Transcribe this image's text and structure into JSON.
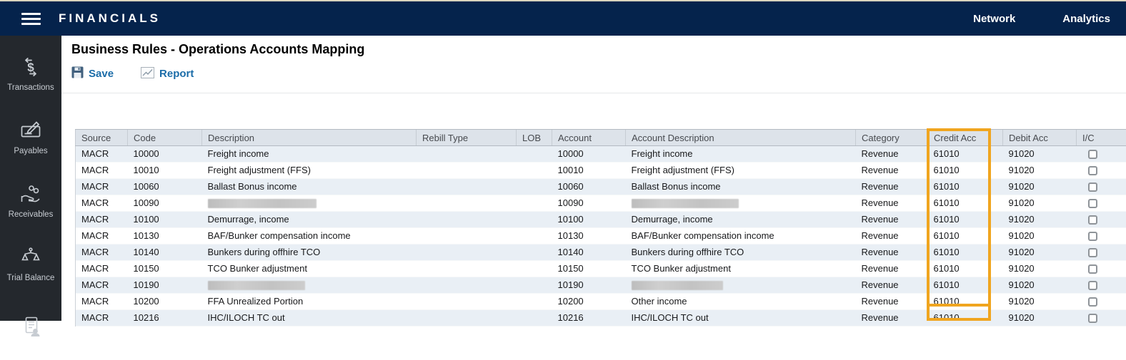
{
  "navbar": {
    "title": "FINANCIALS",
    "links": [
      {
        "label": "Network"
      },
      {
        "label": "Analytics"
      }
    ]
  },
  "sidebar": {
    "items": [
      {
        "label": "Transactions",
        "icon": "money-transfer-icon"
      },
      {
        "label": "Payables",
        "icon": "check-pencil-icon"
      },
      {
        "label": "Receivables",
        "icon": "hand-coins-icon"
      },
      {
        "label": "Trial Balance",
        "icon": "scales-icon"
      },
      {
        "label": "",
        "icon": "document-person-icon"
      }
    ]
  },
  "main": {
    "title": "Business Rules - Operations Accounts Mapping",
    "toolbar": {
      "save_label": "Save",
      "report_label": "Report"
    }
  },
  "table": {
    "columns": [
      "Source",
      "Code",
      "Description",
      "Rebill Type",
      "LOB",
      "Account",
      "Account Description",
      "Category",
      "Credit Acc",
      "Debit Acc",
      "I/C"
    ],
    "rows": [
      {
        "source": "MACR",
        "code": "10000",
        "description": "Freight income",
        "rebill_type": "",
        "lob": "",
        "account": "10000",
        "account_description": "Freight income",
        "category": "Revenue",
        "credit_acc": "61010",
        "debit_acc": "91020",
        "ic_checked": false
      },
      {
        "source": "MACR",
        "code": "10010",
        "description": "Freight adjustment (FFS)",
        "rebill_type": "",
        "lob": "",
        "account": "10010",
        "account_description": "Freight adjustment (FFS)",
        "category": "Revenue",
        "credit_acc": "61010",
        "debit_acc": "91020",
        "ic_checked": false
      },
      {
        "source": "MACR",
        "code": "10060",
        "description": "Ballast Bonus income",
        "rebill_type": "",
        "lob": "",
        "account": "10060",
        "account_description": "Ballast Bonus income",
        "category": "Revenue",
        "credit_acc": "61010",
        "debit_acc": "91020",
        "ic_checked": false
      },
      {
        "source": "MACR",
        "code": "10090",
        "description": "",
        "description_redacted": true,
        "rebill_type": "",
        "lob": "",
        "account": "10090",
        "account_description": "",
        "account_description_redacted": true,
        "category": "Revenue",
        "credit_acc": "61010",
        "debit_acc": "91020",
        "ic_checked": false
      },
      {
        "source": "MACR",
        "code": "10100",
        "description": "Demurrage, income",
        "rebill_type": "",
        "lob": "",
        "account": "10100",
        "account_description": "Demurrage, income",
        "category": "Revenue",
        "credit_acc": "61010",
        "debit_acc": "91020",
        "ic_checked": false
      },
      {
        "source": "MACR",
        "code": "10130",
        "description": "BAF/Bunker compensation income",
        "rebill_type": "",
        "lob": "",
        "account": "10130",
        "account_description": "BAF/Bunker compensation income",
        "category": "Revenue",
        "credit_acc": "61010",
        "debit_acc": "91020",
        "ic_checked": false
      },
      {
        "source": "MACR",
        "code": "10140",
        "description": "Bunkers during offhire TCO",
        "rebill_type": "",
        "lob": "",
        "account": "10140",
        "account_description": "Bunkers during offhire TCO",
        "category": "Revenue",
        "credit_acc": "61010",
        "debit_acc": "91020",
        "ic_checked": false
      },
      {
        "source": "MACR",
        "code": "10150",
        "description": "TCO Bunker adjustment",
        "rebill_type": "",
        "lob": "",
        "account": "10150",
        "account_description": "TCO Bunker adjustment",
        "category": "Revenue",
        "credit_acc": "61010",
        "debit_acc": "91020",
        "ic_checked": false
      },
      {
        "source": "MACR",
        "code": "10190",
        "description": "",
        "description_redacted": true,
        "rebill_type": "",
        "lob": "",
        "account": "10190",
        "account_description": "",
        "account_description_redacted": true,
        "category": "Revenue",
        "credit_acc": "61010",
        "debit_acc": "91020",
        "ic_checked": false
      },
      {
        "source": "MACR",
        "code": "10200",
        "description": "FFA Unrealized Portion",
        "rebill_type": "",
        "lob": "",
        "account": "10200",
        "account_description": "Other income",
        "category": "Revenue",
        "credit_acc": "61010",
        "debit_acc": "91020",
        "ic_checked": false
      },
      {
        "source": "MACR",
        "code": "10216",
        "description": "IHC/ILOCH TC out",
        "rebill_type": "",
        "lob": "",
        "account": "10216",
        "account_description": "IHC/ILOCH TC out",
        "category": "Revenue",
        "credit_acc": "61010",
        "debit_acc": "91020",
        "ic_checked": false
      }
    ]
  },
  "highlight": {
    "column": "Credit Acc",
    "color": "#F0A51F"
  }
}
